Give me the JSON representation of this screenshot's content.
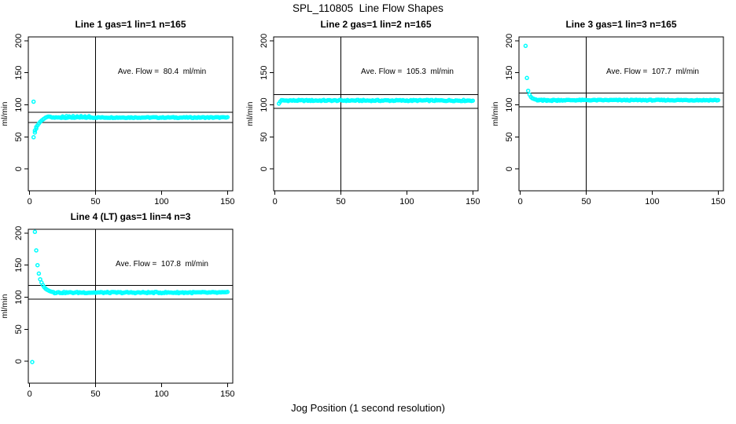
{
  "figure": {
    "title": "SPL_110805  Line Flow Shapes",
    "xlabel": "Jog Position (1 second resolution)",
    "background": "#ffffff"
  },
  "style": {
    "marker_color": "#00ffff",
    "axis_color": "#000000",
    "marker_radius": 2,
    "marker_stroke_width": 1.5
  },
  "axes": {
    "ylabel": "ml/min",
    "x_ticks": [
      0,
      50,
      100,
      150
    ],
    "y_ticks": [
      0,
      50,
      100,
      150,
      200
    ],
    "x_range": [
      -1,
      154
    ],
    "y_range": [
      -34,
      206
    ],
    "grid": false
  },
  "chart_data": [
    {
      "type": "scatter",
      "title": "Line 1 gas=1 lin=1 n=165",
      "annotation": "Ave. Flow =  80.4  ml/min",
      "ave_flow": 80.4,
      "vline_x": 50,
      "hlines": [
        88.4,
        72.4
      ],
      "transient_points": [
        [
          3,
          105
        ],
        [
          3,
          49.5
        ],
        [
          4,
          57
        ],
        [
          4,
          60
        ],
        [
          5,
          63
        ],
        [
          5,
          65.5
        ],
        [
          6,
          68
        ],
        [
          7,
          71
        ],
        [
          8,
          73.5
        ],
        [
          9,
          75.5
        ],
        [
          10,
          77
        ],
        [
          11,
          78.5
        ],
        [
          12,
          80
        ],
        [
          13,
          81
        ],
        [
          14,
          81.7
        ],
        [
          15,
          81.7
        ],
        [
          16,
          81.2
        ],
        [
          25,
          82
        ],
        [
          28,
          82.4
        ],
        [
          30,
          82
        ],
        [
          33,
          82.4
        ],
        [
          36,
          82
        ],
        [
          39,
          82.4
        ],
        [
          42,
          82
        ],
        [
          45,
          82.3
        ]
      ],
      "steady": {
        "x_from": 17,
        "x_to": 150,
        "step": 1,
        "value": 80.3,
        "noise": 0.7
      }
    },
    {
      "type": "scatter",
      "title": "Line 2 gas=1 lin=2 n=165",
      "annotation": "Ave. Flow =  105.3  ml/min",
      "ave_flow": 105.3,
      "vline_x": 50,
      "hlines": [
        115.8,
        94.8
      ],
      "transient_points": [
        [
          3,
          102
        ],
        [
          4,
          105
        ]
      ],
      "steady": {
        "x_from": 5,
        "x_to": 150,
        "step": 1,
        "value": 106.8,
        "noise": 0.9
      }
    },
    {
      "type": "scatter",
      "title": "Line 3 gas=1 lin=3 n=165",
      "annotation": "Ave. Flow =  107.7  ml/min",
      "ave_flow": 107.7,
      "vline_x": 50,
      "hlines": [
        118.5,
        96.9
      ],
      "transient_points": [
        [
          4,
          192
        ],
        [
          5,
          142
        ],
        [
          6,
          122
        ],
        [
          7,
          116
        ],
        [
          8,
          112.5
        ],
        [
          9,
          110.5
        ],
        [
          10,
          109.5
        ],
        [
          11,
          108.8
        ],
        [
          12,
          108.3
        ],
        [
          14,
          107
        ],
        [
          17,
          106.5
        ],
        [
          20,
          106.3
        ],
        [
          24,
          106.2
        ],
        [
          28,
          106.3
        ]
      ],
      "steady": {
        "x_from": 13,
        "x_to": 150,
        "step": 1,
        "value": 107.4,
        "noise": 0.7
      }
    },
    {
      "type": "scatter",
      "title": "Line 4 (LT) gas=1 lin=4 n=3",
      "annotation": "Ave. Flow =  107.8  ml/min",
      "ave_flow": 107.8,
      "vline_x": 50,
      "hlines": [
        118.6,
        97.0
      ],
      "transient_points": [
        [
          2,
          -1
        ],
        [
          4,
          202
        ],
        [
          5,
          173
        ],
        [
          6,
          150
        ],
        [
          7,
          137
        ],
        [
          8,
          128
        ],
        [
          9,
          123
        ],
        [
          10,
          119
        ],
        [
          11,
          116
        ],
        [
          12,
          113.5
        ],
        [
          13,
          112
        ],
        [
          14,
          110.8
        ],
        [
          15,
          109.8
        ],
        [
          16,
          109
        ],
        [
          17,
          108.4
        ],
        [
          18,
          108
        ]
      ],
      "steady": {
        "x_from": 19,
        "x_to": 150,
        "step": 1,
        "value": 107.3,
        "noise": 1.0
      }
    }
  ]
}
